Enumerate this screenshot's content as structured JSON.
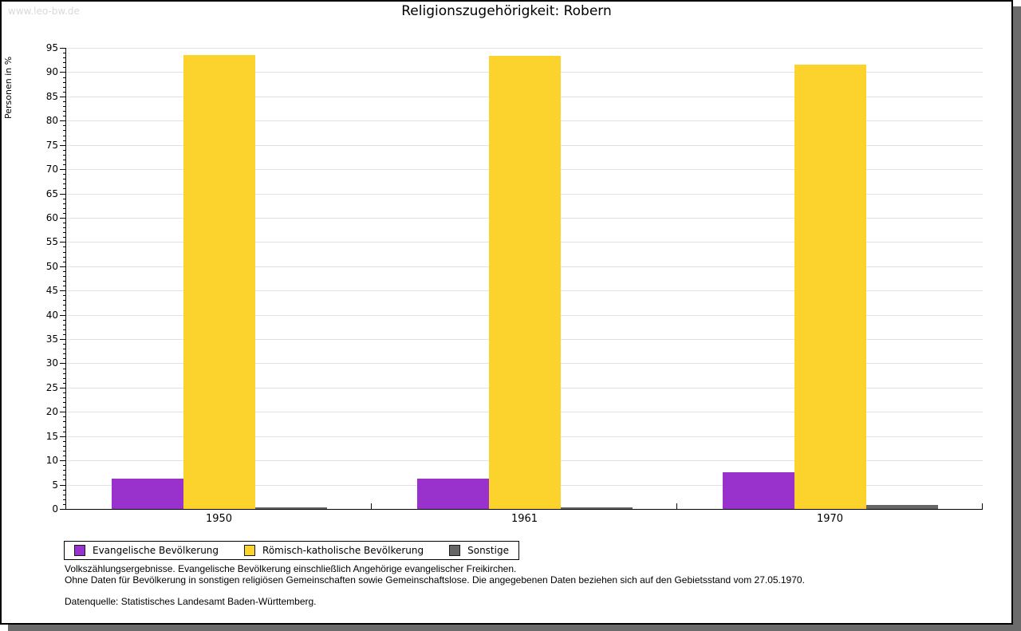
{
  "page": {
    "watermark": "www.leo-bw.de"
  },
  "chart_data": {
    "type": "bar",
    "title": "Religionszugehörigkeit: Robern",
    "ylabel": "Personen in %",
    "xlabel": "",
    "ylim": [
      0,
      95
    ],
    "ytick_step": 5,
    "yminor_step": 1,
    "grid": true,
    "legend_position": "bottom",
    "categories": [
      "1950",
      "1961",
      "1970"
    ],
    "series": [
      {
        "name": "Evangelische Bevölkerung",
        "color": "#9932cc",
        "values": [
          6.2,
          6.2,
          7.6
        ]
      },
      {
        "name": "Römisch-katholische Bevölkerung",
        "color": "#fcd32d",
        "values": [
          93.5,
          93.4,
          91.5
        ]
      },
      {
        "name": "Sonstige",
        "color": "#666666",
        "values": [
          0.3,
          0.4,
          0.8
        ]
      }
    ]
  },
  "footer": {
    "line1": "Volkszählungsergebnisse. Evangelische Bevölkerung einschließlich Angehörige evangelischer Freikirchen.",
    "line2": "Ohne Daten für Bevölkerung in sonstigen religiösen Gemeinschaften sowie Gemeinschaftslose. Die angegebenen Daten beziehen sich auf den Gebietsstand vom 27.05.1970.",
    "source": "Datenquelle: Statistisches Landesamt Baden-Württemberg."
  }
}
